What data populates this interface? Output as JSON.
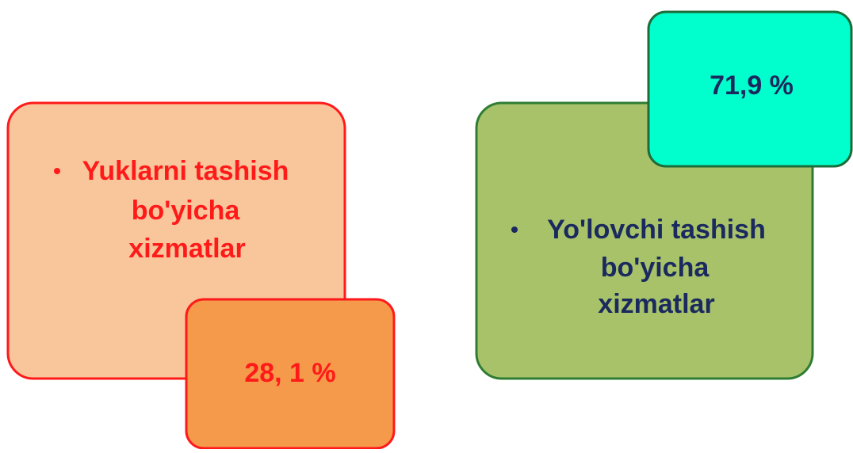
{
  "boxes": [
    {
      "label_lines": [
        "Yuklarni tashish",
        "bo'yicha",
        "xizmatlar"
      ],
      "value": "28, 1 %"
    },
    {
      "label_lines": [
        "Yo'lovchi tashish",
        "bo'yicha",
        "xizmatlar"
      ],
      "value": "71,9 %"
    }
  ]
}
